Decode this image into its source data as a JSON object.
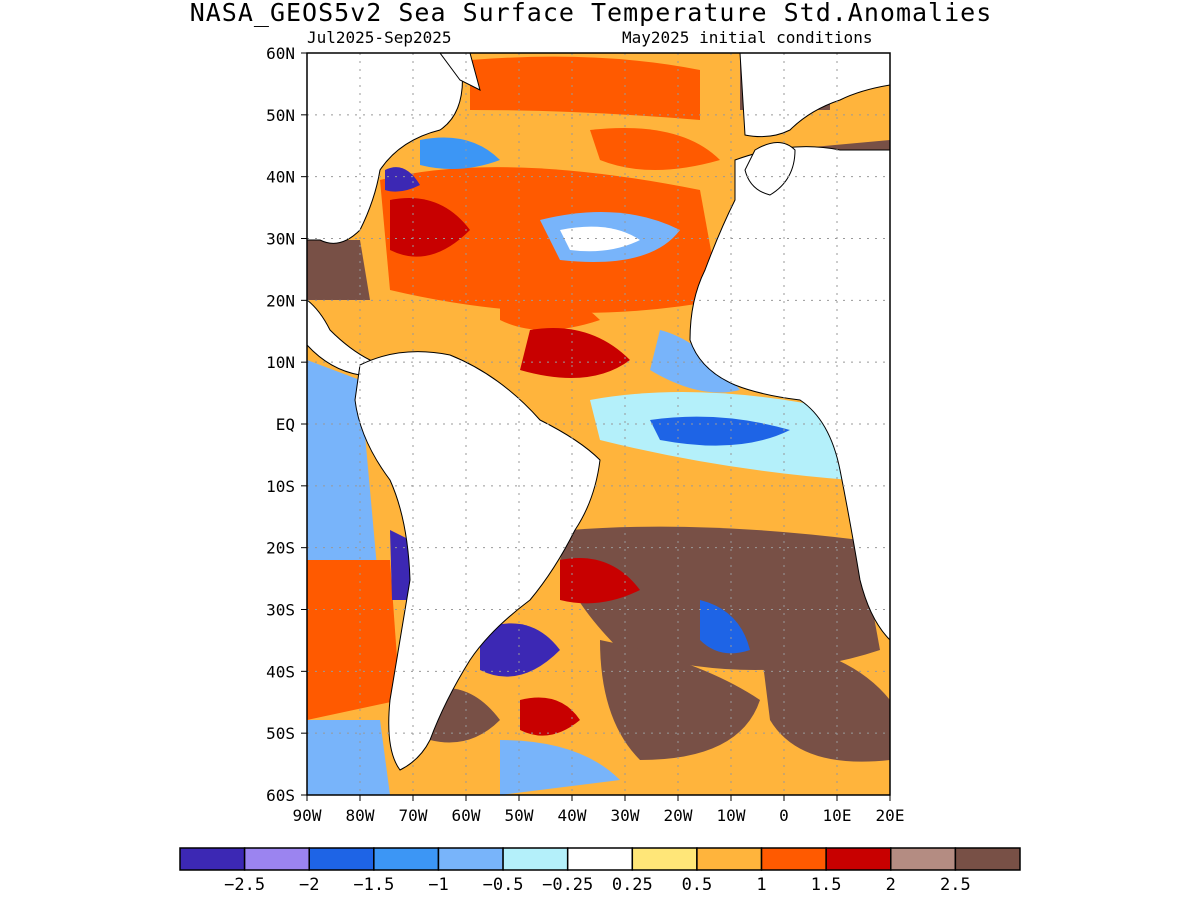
{
  "title": "NASA_GEOS5v2 Sea Surface Temperature Std.Anomalies",
  "period": "Jul2025-Sep2025",
  "initial_conditions": "May2025 initial conditions",
  "map": {
    "region": "Atlantic",
    "lat_range": [
      -60,
      60
    ],
    "lon_range": [
      -90,
      20
    ],
    "grid": true,
    "lat_labels": [
      "60N",
      "50N",
      "40N",
      "30N",
      "20N",
      "10N",
      "EQ",
      "10S",
      "20S",
      "30S",
      "40S",
      "50S",
      "60S"
    ],
    "lon_labels": [
      "90W",
      "80W",
      "70W",
      "60W",
      "50W",
      "40W",
      "30W",
      "20W",
      "10W",
      "0",
      "10E",
      "20E"
    ]
  },
  "colorbar": {
    "colors": [
      "#3c28b4",
      "#9b84f0",
      "#1e64e6",
      "#3c96f5",
      "#78b4fa",
      "#b4f0fa",
      "#ffffff",
      "#ffe678",
      "#ffb43c",
      "#ff5a00",
      "#c80000",
      "#b48c82",
      "#785046"
    ],
    "labels": [
      "-2.5",
      "-2",
      "-1.5",
      "-1",
      "-0.5",
      "-0.25",
      "0.25",
      "0.5",
      "1",
      "1.5",
      "2",
      "2.5"
    ]
  }
}
